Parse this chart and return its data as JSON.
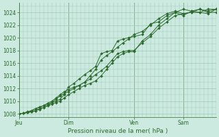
{
  "title": "Pression niveau de la mer( hPa )",
  "bg_color": "#cceae0",
  "line_color": "#2d6a2d",
  "grid_color": "#a0c8b8",
  "ylim": [
    1007.5,
    1025.5
  ],
  "yticks": [
    1008,
    1010,
    1012,
    1014,
    1016,
    1018,
    1020,
    1022,
    1024
  ],
  "xtick_labels": [
    "Jeu",
    "Dim",
    "Ven",
    "Sam"
  ],
  "xtick_positions": [
    0,
    36,
    84,
    120
  ],
  "vline_positions": [
    0,
    36,
    84,
    120
  ],
  "total_steps": 144,
  "series": [
    {
      "x": [
        0,
        3,
        6,
        9,
        12,
        15,
        18,
        21,
        24,
        27,
        30,
        33,
        36,
        40,
        44,
        48,
        52,
        56,
        60,
        64,
        68,
        72,
        76,
        80,
        84,
        90,
        96,
        102,
        108,
        114,
        120,
        126,
        132,
        138,
        144
      ],
      "y": [
        1008.0,
        1008.1,
        1008.3,
        1008.5,
        1008.8,
        1009.0,
        1009.3,
        1009.5,
        1009.8,
        1010.0,
        1010.3,
        1011.0,
        1012.2,
        1012.8,
        1013.5,
        1014.2,
        1014.8,
        1015.5,
        1017.5,
        1017.8,
        1018.0,
        1019.5,
        1019.8,
        1020.0,
        1020.2,
        1020.5,
        1022.2,
        1022.5,
        1023.5,
        1024.0,
        1023.5,
        1024.2,
        1024.5,
        1024.2,
        1024.5
      ]
    },
    {
      "x": [
        0,
        3,
        6,
        9,
        12,
        15,
        18,
        21,
        24,
        27,
        30,
        33,
        36,
        40,
        44,
        48,
        52,
        56,
        60,
        64,
        68,
        72,
        76,
        80,
        84,
        90,
        96,
        102,
        108,
        114,
        120,
        126,
        132,
        138,
        144
      ],
      "y": [
        1008.0,
        1008.1,
        1008.3,
        1008.5,
        1008.8,
        1009.1,
        1009.3,
        1009.7,
        1010.0,
        1010.5,
        1011.0,
        1011.5,
        1011.8,
        1012.2,
        1012.5,
        1013.0,
        1014.0,
        1015.0,
        1016.5,
        1017.2,
        1017.8,
        1018.5,
        1019.2,
        1019.8,
        1020.5,
        1021.0,
        1022.0,
        1023.0,
        1023.8,
        1024.2,
        1023.8,
        1024.0,
        1024.0,
        1023.8,
        1024.5
      ]
    },
    {
      "x": [
        0,
        3,
        6,
        9,
        12,
        15,
        18,
        21,
        24,
        27,
        30,
        33,
        36,
        40,
        44,
        48,
        52,
        56,
        60,
        64,
        68,
        72,
        76,
        80,
        84,
        90,
        96,
        102,
        108,
        114,
        120,
        126,
        132,
        138,
        144
      ],
      "y": [
        1008.0,
        1008.1,
        1008.2,
        1008.4,
        1008.5,
        1008.8,
        1009.0,
        1009.3,
        1009.8,
        1010.3,
        1010.8,
        1011.2,
        1011.5,
        1012.0,
        1012.5,
        1013.0,
        1013.5,
        1014.2,
        1014.8,
        1015.5,
        1016.5,
        1017.5,
        1017.8,
        1018.0,
        1018.0,
        1019.2,
        1020.2,
        1021.5,
        1022.5,
        1023.5,
        1023.8,
        1024.0,
        1024.5,
        1024.0,
        1024.0
      ]
    },
    {
      "x": [
        0,
        3,
        6,
        9,
        12,
        15,
        18,
        21,
        24,
        27,
        30,
        33,
        36,
        40,
        44,
        48,
        52,
        56,
        60,
        64,
        68,
        72,
        76,
        80,
        84,
        90,
        96,
        102,
        108,
        114,
        120,
        126,
        132,
        138,
        144
      ],
      "y": [
        1008.0,
        1008.1,
        1008.2,
        1008.3,
        1008.5,
        1008.7,
        1009.0,
        1009.3,
        1009.5,
        1009.8,
        1010.0,
        1010.5,
        1011.0,
        1011.5,
        1012.0,
        1012.5,
        1012.8,
        1013.2,
        1014.0,
        1015.0,
        1016.0,
        1017.0,
        1017.5,
        1017.8,
        1017.8,
        1019.5,
        1020.5,
        1022.0,
        1023.0,
        1024.0,
        1024.5,
        1024.2,
        1024.0,
        1024.5,
        1024.5
      ]
    }
  ]
}
